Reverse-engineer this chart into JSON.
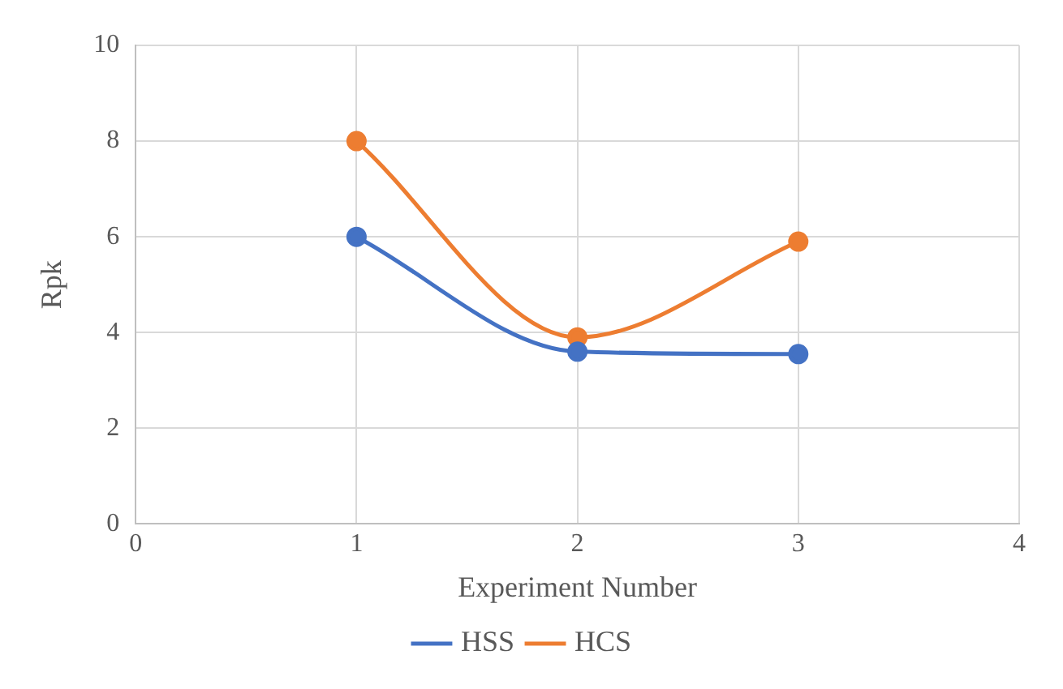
{
  "chart_data": {
    "type": "line",
    "xlabel": "Experiment Number",
    "ylabel": "Rpk",
    "xlim": [
      0,
      4
    ],
    "xticks": [
      0,
      1,
      2,
      3,
      4
    ],
    "ylim": [
      0,
      10
    ],
    "yticks": [
      0,
      2,
      4,
      6,
      8,
      10
    ],
    "grid": true,
    "legend": "bottom",
    "marker": "circle",
    "line_style": "solid",
    "series": [
      {
        "name": "HSS",
        "color": "#4472c4",
        "x": [
          1,
          2,
          3
        ],
        "values": [
          6,
          3.6,
          3.55
        ]
      },
      {
        "name": "HCS",
        "color": "#ed7d31",
        "x": [
          1,
          2,
          3
        ],
        "values": [
          8,
          3.9,
          5.9
        ]
      }
    ]
  }
}
